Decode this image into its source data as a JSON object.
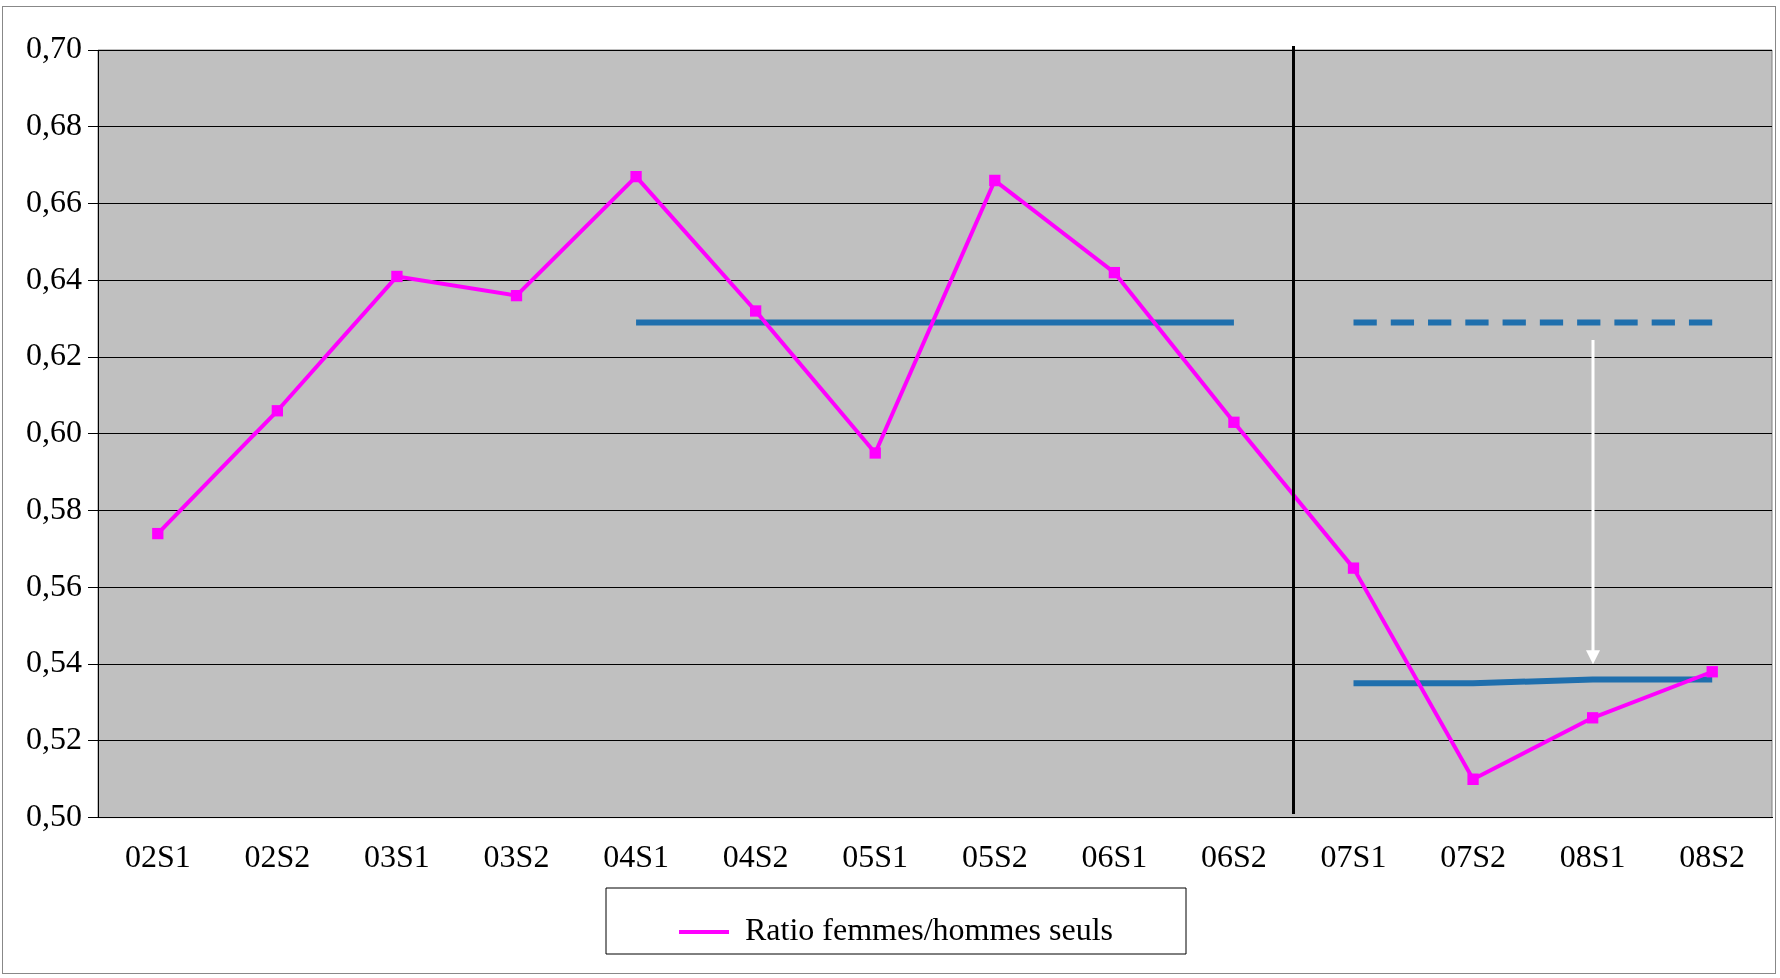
{
  "chart_data": {
    "type": "line",
    "categories": [
      "02S1",
      "02S2",
      "03S1",
      "03S2",
      "04S1",
      "04S2",
      "05S1",
      "05S2",
      "06S1",
      "06S2",
      "07S1",
      "07S2",
      "08S1",
      "08S2"
    ],
    "series": [
      {
        "name": "Ratio femmes/hommes seuls",
        "color": "#ff00ff",
        "marker": "square",
        "values": [
          0.574,
          0.606,
          0.641,
          0.636,
          0.667,
          0.632,
          0.595,
          0.666,
          0.642,
          0.603,
          0.565,
          0.51,
          0.526,
          0.538
        ]
      },
      {
        "color": "#1f6fad",
        "marker": "none",
        "values": [
          null,
          null,
          null,
          null,
          0.629,
          0.629,
          0.629,
          0.629,
          0.629,
          0.629,
          null,
          null,
          null,
          null
        ]
      },
      {
        "color": "#1f6fad",
        "marker": "none",
        "line_style": "dashed",
        "values": [
          null,
          null,
          null,
          null,
          null,
          null,
          null,
          null,
          null,
          null,
          0.629,
          0.629,
          0.629,
          0.629
        ]
      },
      {
        "color": "#1f6fad",
        "marker": "none",
        "values": [
          null,
          null,
          null,
          null,
          null,
          null,
          null,
          null,
          null,
          null,
          0.535,
          0.535,
          0.536,
          0.536
        ]
      }
    ],
    "ylim": [
      0.5,
      0.7
    ],
    "yticks": [
      {
        "value": 0.5,
        "label": "0,50"
      },
      {
        "value": 0.52,
        "label": "0,52"
      },
      {
        "value": 0.54,
        "label": "0,54"
      },
      {
        "value": 0.56,
        "label": "0,56"
      },
      {
        "value": 0.58,
        "label": "0,58"
      },
      {
        "value": 0.6,
        "label": "0,60"
      },
      {
        "value": 0.62,
        "label": "0,62"
      },
      {
        "value": 0.64,
        "label": "0,64"
      },
      {
        "value": 0.66,
        "label": "0,66"
      },
      {
        "value": 0.68,
        "label": "0,68"
      },
      {
        "value": 0.7,
        "label": "0,70"
      }
    ],
    "grid": "y",
    "legend": "bottom"
  }
}
